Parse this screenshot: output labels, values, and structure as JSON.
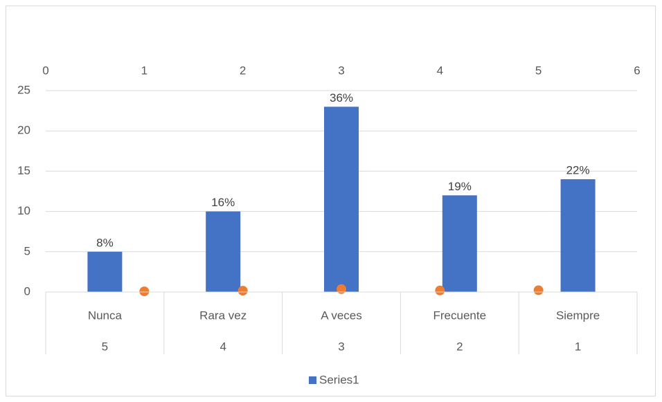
{
  "chart_data": {
    "type": "bar",
    "categories": [
      "Nunca",
      "Rara vez",
      "A veces",
      "Frecuente",
      "Siempre"
    ],
    "categories_2": [
      "5",
      "4",
      "3",
      "2",
      "1"
    ],
    "series": [
      {
        "name": "Series1",
        "color": "#4472c4",
        "values": [
          5,
          10,
          23,
          12,
          14
        ]
      },
      {
        "type": "scatter",
        "color": "#ed7d31",
        "x": [
          1,
          2,
          3,
          4,
          5
        ],
        "values": [
          0.08,
          0.16,
          0.36,
          0.19,
          0.22
        ]
      }
    ],
    "annotations": [
      "8%",
      "16%",
      "36%",
      "19%",
      "22%"
    ],
    "ylim": [
      0,
      25
    ],
    "yticks": [
      0,
      5,
      10,
      15,
      20,
      25
    ],
    "x2lim": [
      0,
      6
    ],
    "x2ticks": [
      0,
      1,
      2,
      3,
      4,
      5,
      6
    ],
    "grid": true,
    "legend": "bottom"
  }
}
